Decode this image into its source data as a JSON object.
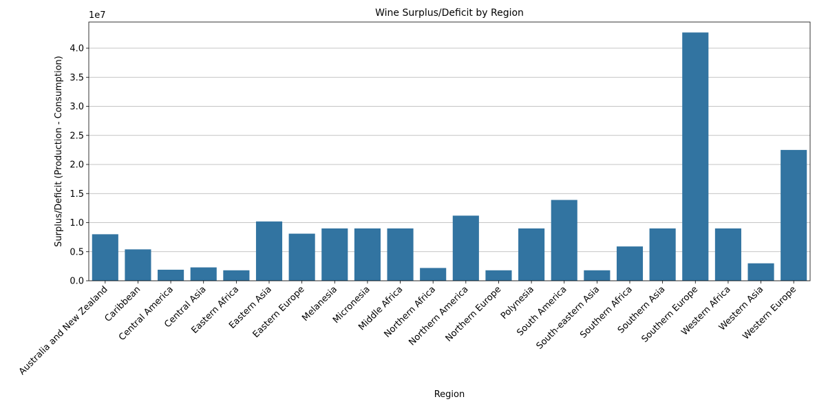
{
  "chart_data": {
    "type": "bar",
    "title": "Wine Surplus/Deficit by Region",
    "xlabel": "Region",
    "ylabel": "Surplus/Deficit (Production - Consumption)",
    "scale_label": "1e7",
    "ylim": [
      0,
      4.45
    ],
    "yticks": [
      0.0,
      0.5,
      1.0,
      1.5,
      2.0,
      2.5,
      3.0,
      3.5,
      4.0
    ],
    "ytick_labels": [
      "0.0",
      "0.5",
      "1.0",
      "1.5",
      "2.0",
      "2.5",
      "3.0",
      "3.5",
      "4.0"
    ],
    "grid": "y",
    "bar_color": "#3274a1",
    "categories": [
      "Australia and New Zealand",
      "Caribbean",
      "Central America",
      "Central Asia",
      "Eastern Africa",
      "Eastern Asia",
      "Eastern Europe",
      "Melanesia",
      "Micronesia",
      "Middle Africa",
      "Northern Africa",
      "Northern America",
      "Northern Europe",
      "Polynesia",
      "South America",
      "South-eastern Asia",
      "Southern Africa",
      "Southern Asia",
      "Southern Europe",
      "Western Africa",
      "Western Asia",
      "Western Europe"
    ],
    "values": [
      0.8,
      0.54,
      0.19,
      0.23,
      0.18,
      1.02,
      0.81,
      0.9,
      0.9,
      0.9,
      0.22,
      1.12,
      0.18,
      0.9,
      1.39,
      0.18,
      0.59,
      0.9,
      4.27,
      0.9,
      0.3,
      2.25
    ]
  }
}
